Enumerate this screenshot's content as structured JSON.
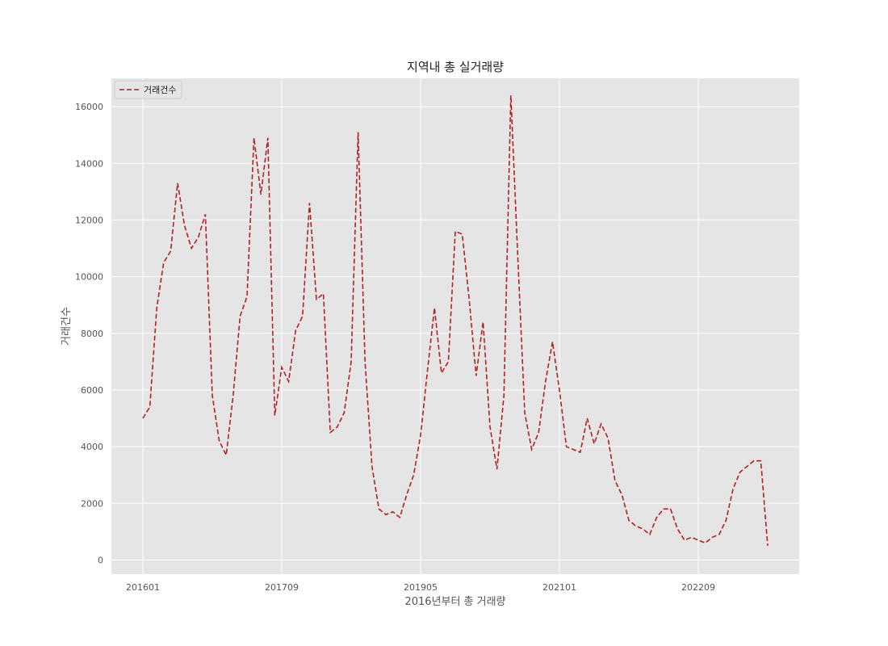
{
  "chart_data": {
    "type": "line",
    "title": "지역내 총 실거래량",
    "xlabel": "2016년부터 총 거래량",
    "ylabel": "거래건수",
    "ylim": [
      -500,
      17000
    ],
    "yticks": [
      0,
      2000,
      4000,
      6000,
      8000,
      10000,
      12000,
      14000,
      16000
    ],
    "xticks": [
      {
        "index": 0,
        "label": "201601"
      },
      {
        "index": 20,
        "label": "201709"
      },
      {
        "index": 40,
        "label": "201905"
      },
      {
        "index": 60,
        "label": "202101"
      },
      {
        "index": 80,
        "label": "202209"
      }
    ],
    "grid": true,
    "legend_position": "top-left",
    "line_color": "#b22222",
    "line_style": "dashed",
    "series": [
      {
        "name": "거래건수",
        "values": [
          5000,
          5400,
          8900,
          10500,
          10900,
          13300,
          11800,
          11000,
          11400,
          12200,
          5800,
          4200,
          3700,
          5800,
          8600,
          9300,
          14900,
          12900,
          14900,
          5100,
          6800,
          6300,
          8100,
          8600,
          12600,
          9200,
          9400,
          4500,
          4700,
          5200,
          7000,
          15100,
          7000,
          3300,
          1800,
          1600,
          1700,
          1500,
          2300,
          3000,
          4400,
          6700,
          8900,
          6600,
          7000,
          11600,
          11500,
          9200,
          6500,
          8400,
          4700,
          3200,
          5800,
          16400,
          10700,
          5200,
          3900,
          4500,
          6300,
          7700,
          6000,
          4000,
          3900,
          3800,
          5000,
          4100,
          4800,
          4300,
          2800,
          2300,
          1400,
          1200,
          1100,
          900,
          1500,
          1800,
          1800,
          1100,
          700,
          800,
          700,
          600,
          800,
          900,
          1400,
          2500,
          3100,
          3300,
          3500,
          3500,
          500
        ]
      }
    ]
  }
}
